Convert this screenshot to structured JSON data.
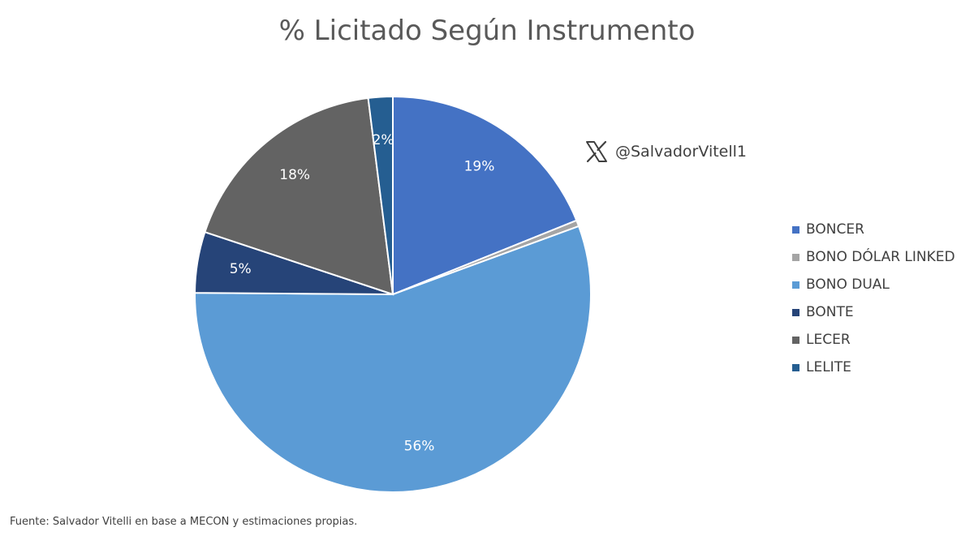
{
  "chart_data": {
    "type": "pie",
    "title": "% Licitado Según Instrumento",
    "slices": [
      {
        "name": "BONCER",
        "value": 19,
        "label": "19%",
        "color": "#4472C4"
      },
      {
        "name": "BONO DÓLAR LINKED",
        "value": 0.5,
        "label": "",
        "color": "#A5A5A5"
      },
      {
        "name": "BONO DUAL",
        "value": 56,
        "label": "56%",
        "color": "#5B9BD5"
      },
      {
        "name": "BONTE",
        "value": 5,
        "label": "5%",
        "color": "#264478"
      },
      {
        "name": "LECER",
        "value": 18,
        "label": "18%",
        "color": "#636363"
      },
      {
        "name": "LELITE",
        "value": 2,
        "label": "2%",
        "color": "#255E91"
      }
    ],
    "legend_position": "right"
  },
  "watermark": {
    "icon": "x-logo-icon",
    "handle": "@SalvadorVitell1"
  },
  "source_note": "Fuente: Salvador Vitelli en base a MECON y estimaciones propias."
}
